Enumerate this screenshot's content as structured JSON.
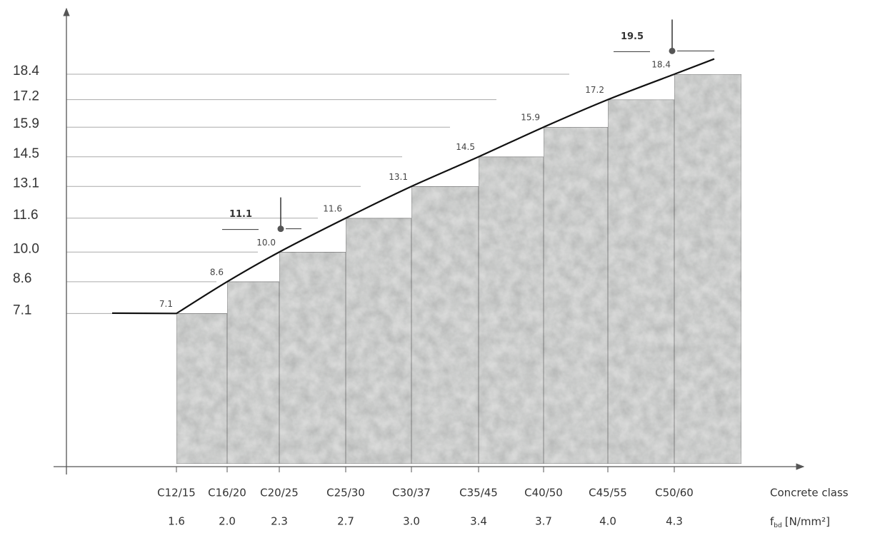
{
  "chart_data": {
    "type": "step-bar",
    "categories": [
      "C12/15",
      "C16/20",
      "C20/25",
      "C25/30",
      "C30/37",
      "C35/45",
      "C40/50",
      "C45/55",
      "C50/60"
    ],
    "secondary_categories": [
      "1.6",
      "2.0",
      "2.3",
      "2.7",
      "3.0",
      "3.4",
      "3.7",
      "4.0",
      "4.3"
    ],
    "x_label": "Concrete class",
    "x2_label": {
      "symbol": "f",
      "subscript": "bd",
      "unit": "[N/mm²]"
    },
    "values": [
      7.1,
      8.6,
      10,
      11.6,
      13.1,
      14.5,
      15.9,
      17.2,
      18.4
    ],
    "value_labels": [
      "7.1",
      "8.6",
      "10.0",
      "11.6",
      "13.1",
      "14.5",
      "15.9",
      "17.2",
      "18.4"
    ],
    "ylim": [
      0,
      21.4
    ],
    "yticks": [
      7.1,
      8.6,
      {
        "value": 10,
        "label": "10.0"
      },
      11.6,
      13.1,
      14.5,
      15.9,
      17.2,
      18.4
    ],
    "markers": [
      {
        "value": 11.1
      },
      {
        "value": 19.5
      }
    ],
    "grid": true,
    "color": "#d9dad9"
  }
}
